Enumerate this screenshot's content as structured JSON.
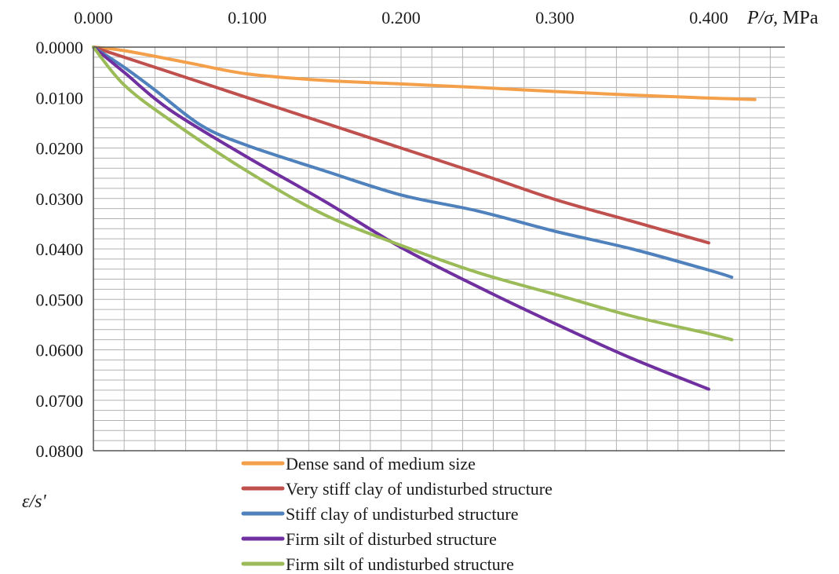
{
  "chart_data": {
    "type": "line",
    "xlabel": "P/σ",
    "xunit": ", MPa",
    "ylabel": "ε/s'",
    "xlim": [
      0,
      0.44
    ],
    "ylim": [
      0,
      0.08
    ],
    "x_ticks": [
      {
        "value": 0.0,
        "label": "0.000"
      },
      {
        "value": 0.1,
        "label": "0.100"
      },
      {
        "value": 0.2,
        "label": "0.200"
      },
      {
        "value": 0.3,
        "label": "0.300"
      },
      {
        "value": 0.4,
        "label": "0.400"
      }
    ],
    "y_ticks": [
      {
        "value": 0.0,
        "label": "0.0000"
      },
      {
        "value": 0.01,
        "label": "0.0100"
      },
      {
        "value": 0.02,
        "label": "0.0200"
      },
      {
        "value": 0.03,
        "label": "0.0300"
      },
      {
        "value": 0.04,
        "label": "0.0400"
      },
      {
        "value": 0.05,
        "label": "0.0500"
      },
      {
        "value": 0.06,
        "label": "0.0600"
      },
      {
        "value": 0.07,
        "label": "0.0700"
      },
      {
        "value": 0.08,
        "label": "0.0800"
      }
    ],
    "x_axis_position": "top",
    "y_axis_inverted": true,
    "grid": true,
    "legend_position": "bottom",
    "series": [
      {
        "name": "Dense sand of medium size",
        "color": "#f4a04a",
        "x": [
          0.0,
          0.02,
          0.06,
          0.1,
          0.15,
          0.2,
          0.25,
          0.3,
          0.35,
          0.4,
          0.43
        ],
        "y": [
          0.0,
          0.0007,
          0.003,
          0.0053,
          0.0066,
          0.0073,
          0.008,
          0.0088,
          0.0095,
          0.0101,
          0.0104
        ]
      },
      {
        "name": "Very stiff clay of undisturbed structure",
        "color": "#c0504d",
        "x": [
          0.0,
          0.05,
          0.1,
          0.15,
          0.2,
          0.25,
          0.3,
          0.35,
          0.4
        ],
        "y": [
          0.0,
          0.005,
          0.01,
          0.015,
          0.02,
          0.025,
          0.0302,
          0.0345,
          0.0388
        ]
      },
      {
        "name": "Stiff clay of undisturbed structure",
        "color": "#4f81bd",
        "x": [
          0.0,
          0.02,
          0.04,
          0.07,
          0.1,
          0.15,
          0.2,
          0.25,
          0.3,
          0.35,
          0.4,
          0.415
        ],
        "y": [
          0.0,
          0.004,
          0.0085,
          0.0155,
          0.0195,
          0.0245,
          0.0293,
          0.0325,
          0.0365,
          0.04,
          0.0442,
          0.0456
        ]
      },
      {
        "name": "Firm silt of disturbed structure",
        "color": "#7030a0",
        "x": [
          0.0,
          0.02,
          0.05,
          0.1,
          0.15,
          0.2,
          0.25,
          0.3,
          0.35,
          0.4
        ],
        "y": [
          0.0,
          0.005,
          0.0125,
          0.0218,
          0.0305,
          0.0397,
          0.0475,
          0.0548,
          0.0617,
          0.0678
        ]
      },
      {
        "name": "Firm silt of undisturbed structure",
        "color": "#9bbb59",
        "x": [
          0.0,
          0.02,
          0.05,
          0.1,
          0.15,
          0.2,
          0.25,
          0.3,
          0.35,
          0.4,
          0.415
        ],
        "y": [
          0.0,
          0.0075,
          0.0145,
          0.0246,
          0.0332,
          0.0393,
          0.0447,
          0.049,
          0.0533,
          0.0568,
          0.058
        ]
      }
    ]
  }
}
